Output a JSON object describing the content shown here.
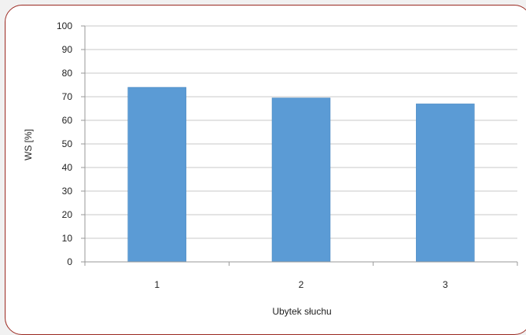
{
  "chart_data": {
    "type": "bar",
    "title": "",
    "xlabel": "Ubytek słuchu",
    "ylabel": "WS [%]",
    "categories": [
      "1",
      "2",
      "3"
    ],
    "values": [
      74,
      69.5,
      67
    ],
    "ylim": [
      0,
      100
    ],
    "yticks": [
      "0",
      "10",
      "20",
      "30",
      "40",
      "50",
      "60",
      "70",
      "80",
      "90",
      "100"
    ],
    "grid": true,
    "legend": "none",
    "colors": {
      "bar": "#5b9bd5",
      "bar_edge": "#4a86be",
      "grid": "#c8c8c8",
      "axis": "#999999",
      "frame_border": "#9b2a22"
    }
  }
}
